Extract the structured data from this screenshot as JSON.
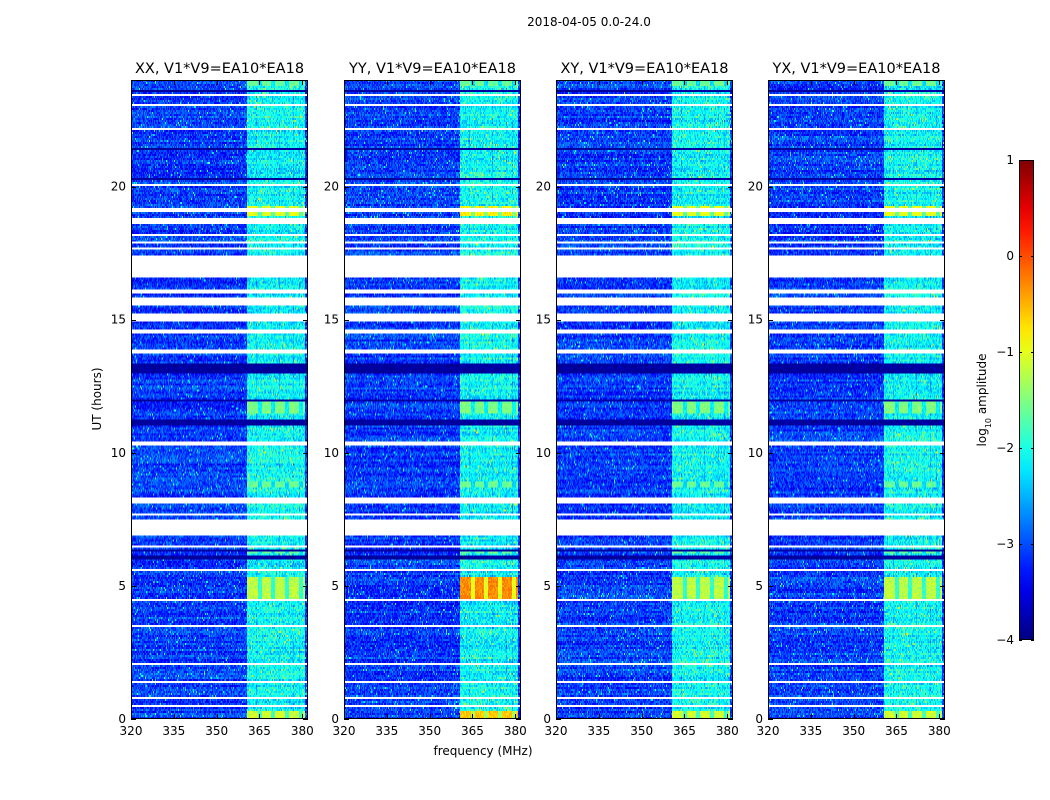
{
  "chart_data": {
    "type": "heatmap",
    "suptitle": "2018-04-05 0.0-24.0",
    "xlabel": "frequency (MHz)",
    "ylabel": "UT (hours)",
    "xlim": [
      320,
      382
    ],
    "ylim": [
      0,
      24
    ],
    "xticks": [
      320,
      335,
      350,
      365,
      380
    ],
    "xtick_labels": [
      "320",
      "335",
      "350",
      "365",
      "380"
    ],
    "yticks": [
      0,
      5,
      10,
      15,
      20
    ],
    "ytick_labels": [
      "0",
      "5",
      "10",
      "15",
      "20"
    ],
    "panels": [
      {
        "title": "XX, V1*V9=EA10*EA18",
        "pol": "XX"
      },
      {
        "title": "YY, V1*V9=EA10*EA18",
        "pol": "YY"
      },
      {
        "title": "XY, V1*V9=EA10*EA18",
        "pol": "XY"
      },
      {
        "title": "YX, V1*V9=EA10*EA18",
        "pol": "YX"
      }
    ],
    "colorbar": {
      "label": "log10 amplitude",
      "label_main": "log",
      "label_sub": "10",
      "label_rest": " amplitude",
      "range": [
        -4,
        1
      ],
      "ticks": [
        1,
        0,
        -1,
        -2,
        -3,
        -4
      ],
      "tick_labels": [
        "1",
        "0",
        "−1",
        "−2",
        "−3",
        "−4"
      ],
      "colormap": "jet"
    },
    "gap_bands_hours": [
      [
        0.45,
        0.5
      ],
      [
        0.75,
        0.82
      ],
      [
        1.35,
        1.42
      ],
      [
        2.0,
        2.07
      ],
      [
        3.45,
        3.55
      ],
      [
        4.45,
        4.5
      ],
      [
        5.0,
        5.05
      ],
      [
        5.55,
        5.62
      ],
      [
        5.9,
        5.95
      ],
      [
        6.45,
        6.5
      ],
      [
        6.9,
        7.5
      ],
      [
        7.65,
        7.75
      ],
      [
        8.1,
        8.3
      ],
      [
        8.6,
        8.65
      ],
      [
        10.3,
        10.45
      ],
      [
        12.5,
        12.55
      ],
      [
        13.75,
        13.85
      ],
      [
        14.5,
        14.6
      ],
      [
        14.95,
        15.2
      ],
      [
        15.5,
        15.8
      ],
      [
        16.0,
        16.1
      ],
      [
        16.6,
        17.4
      ],
      [
        17.6,
        17.7
      ],
      [
        17.85,
        17.95
      ],
      [
        18.15,
        18.25
      ],
      [
        18.6,
        18.8
      ],
      [
        19.05,
        19.2
      ],
      [
        20.0,
        20.1
      ],
      [
        22.1,
        22.2
      ],
      [
        23.05,
        23.12
      ],
      [
        23.4,
        23.46
      ]
    ],
    "dark_bands_hours": [
      [
        6.0,
        6.15
      ],
      [
        6.3,
        6.38
      ],
      [
        11.05,
        11.25
      ],
      [
        11.9,
        12.0
      ],
      [
        12.95,
        13.35
      ],
      [
        20.25,
        20.35
      ],
      [
        21.35,
        21.45
      ],
      [
        23.55,
        23.65
      ]
    ],
    "rfi_channels_mhz": [
      361,
      363,
      365,
      366,
      368,
      370,
      371,
      373,
      375,
      376,
      378,
      380
    ],
    "rfi_bursts": [
      {
        "hours": [
          4.5,
          5.3
        ],
        "log_amp": -1.2,
        "yy_log_amp": -0.3
      },
      {
        "hours": [
          0.0,
          0.3
        ],
        "log_amp": -1.1,
        "yy_log_amp": -0.6
      },
      {
        "hours": [
          11.5,
          12.0
        ],
        "log_amp": -1.5
      },
      {
        "hours": [
          18.9,
          19.3
        ],
        "log_amp": -1.0,
        "yy_log_amp": -0.8
      },
      {
        "hours": [
          23.8,
          24.0
        ],
        "log_amp": -1.6
      },
      {
        "hours": [
          6.2,
          6.4
        ],
        "log_amp": -1.6
      },
      {
        "hours": [
          8.7,
          8.9
        ],
        "log_amp": -1.6
      }
    ],
    "background_log_amp": -3.1
  }
}
